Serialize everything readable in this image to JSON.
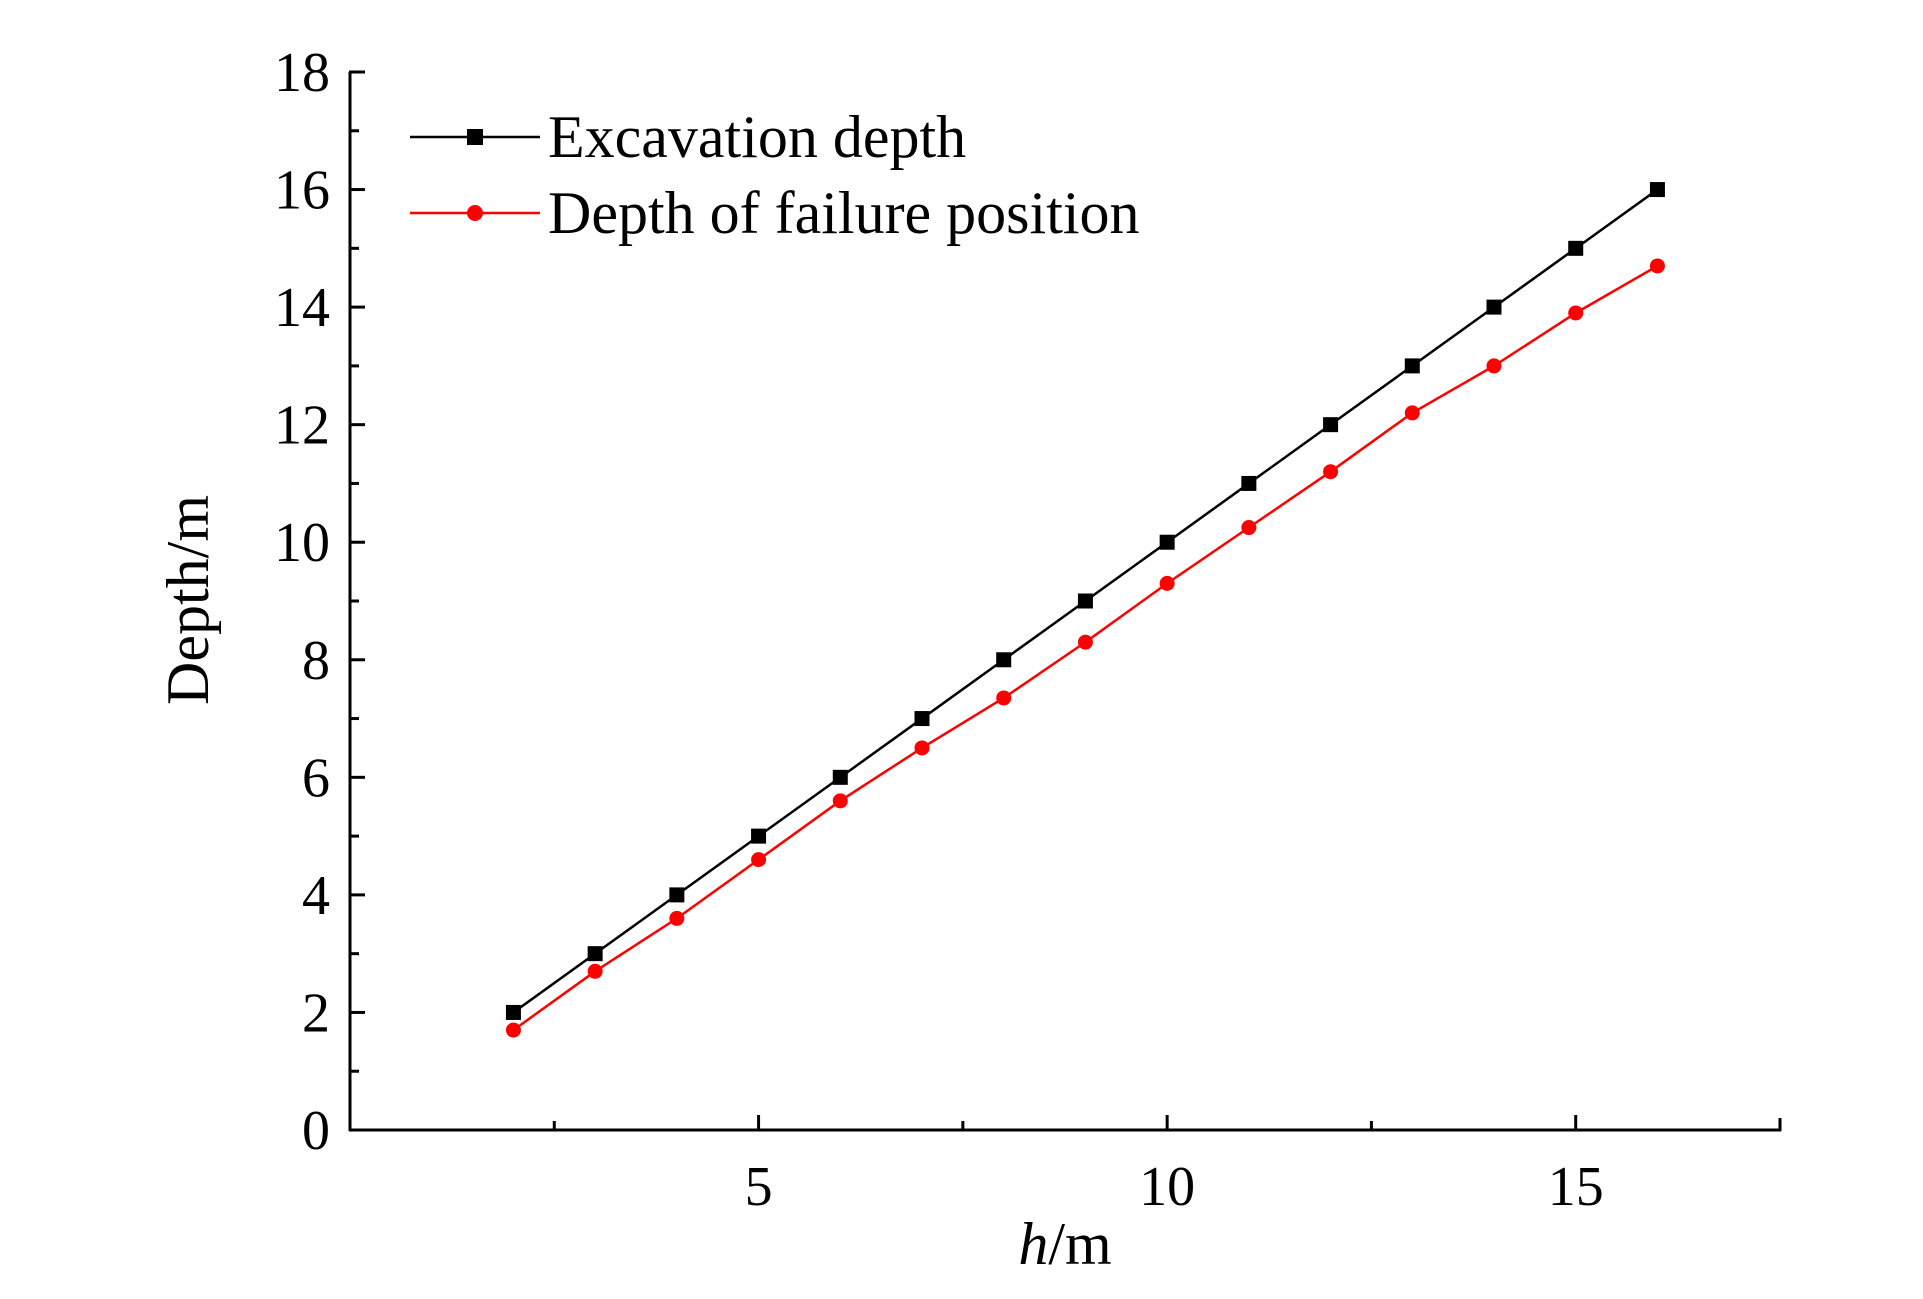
{
  "chart_data": {
    "type": "line",
    "title": "",
    "xlabel": {
      "italic": "h",
      "rest": "/m"
    },
    "ylabel": "Depth/m",
    "xlim": [
      0,
      17.5
    ],
    "ylim": [
      0,
      18
    ],
    "xticks": [
      5,
      10,
      15
    ],
    "yticks": [
      0,
      2,
      4,
      6,
      8,
      10,
      12,
      14,
      16,
      18
    ],
    "grid": false,
    "legend_position": "top-left",
    "x": [
      2,
      3,
      4,
      5,
      6,
      7,
      8,
      9,
      10,
      11,
      12,
      13,
      14,
      15,
      16
    ],
    "series": [
      {
        "name": "Excavation depth",
        "color": "#000000",
        "marker": "square",
        "values": [
          2,
          3,
          4,
          5,
          6,
          7,
          8,
          9,
          10,
          11,
          12,
          13,
          14,
          15,
          16
        ]
      },
      {
        "name": "Depth of failure position",
        "color": "#ff0000",
        "marker": "circle",
        "values": [
          1.7,
          2.7,
          3.6,
          4.6,
          5.6,
          6.5,
          7.35,
          8.3,
          9.3,
          10.25,
          11.2,
          12.2,
          13.0,
          13.9,
          14.7
        ]
      }
    ]
  }
}
